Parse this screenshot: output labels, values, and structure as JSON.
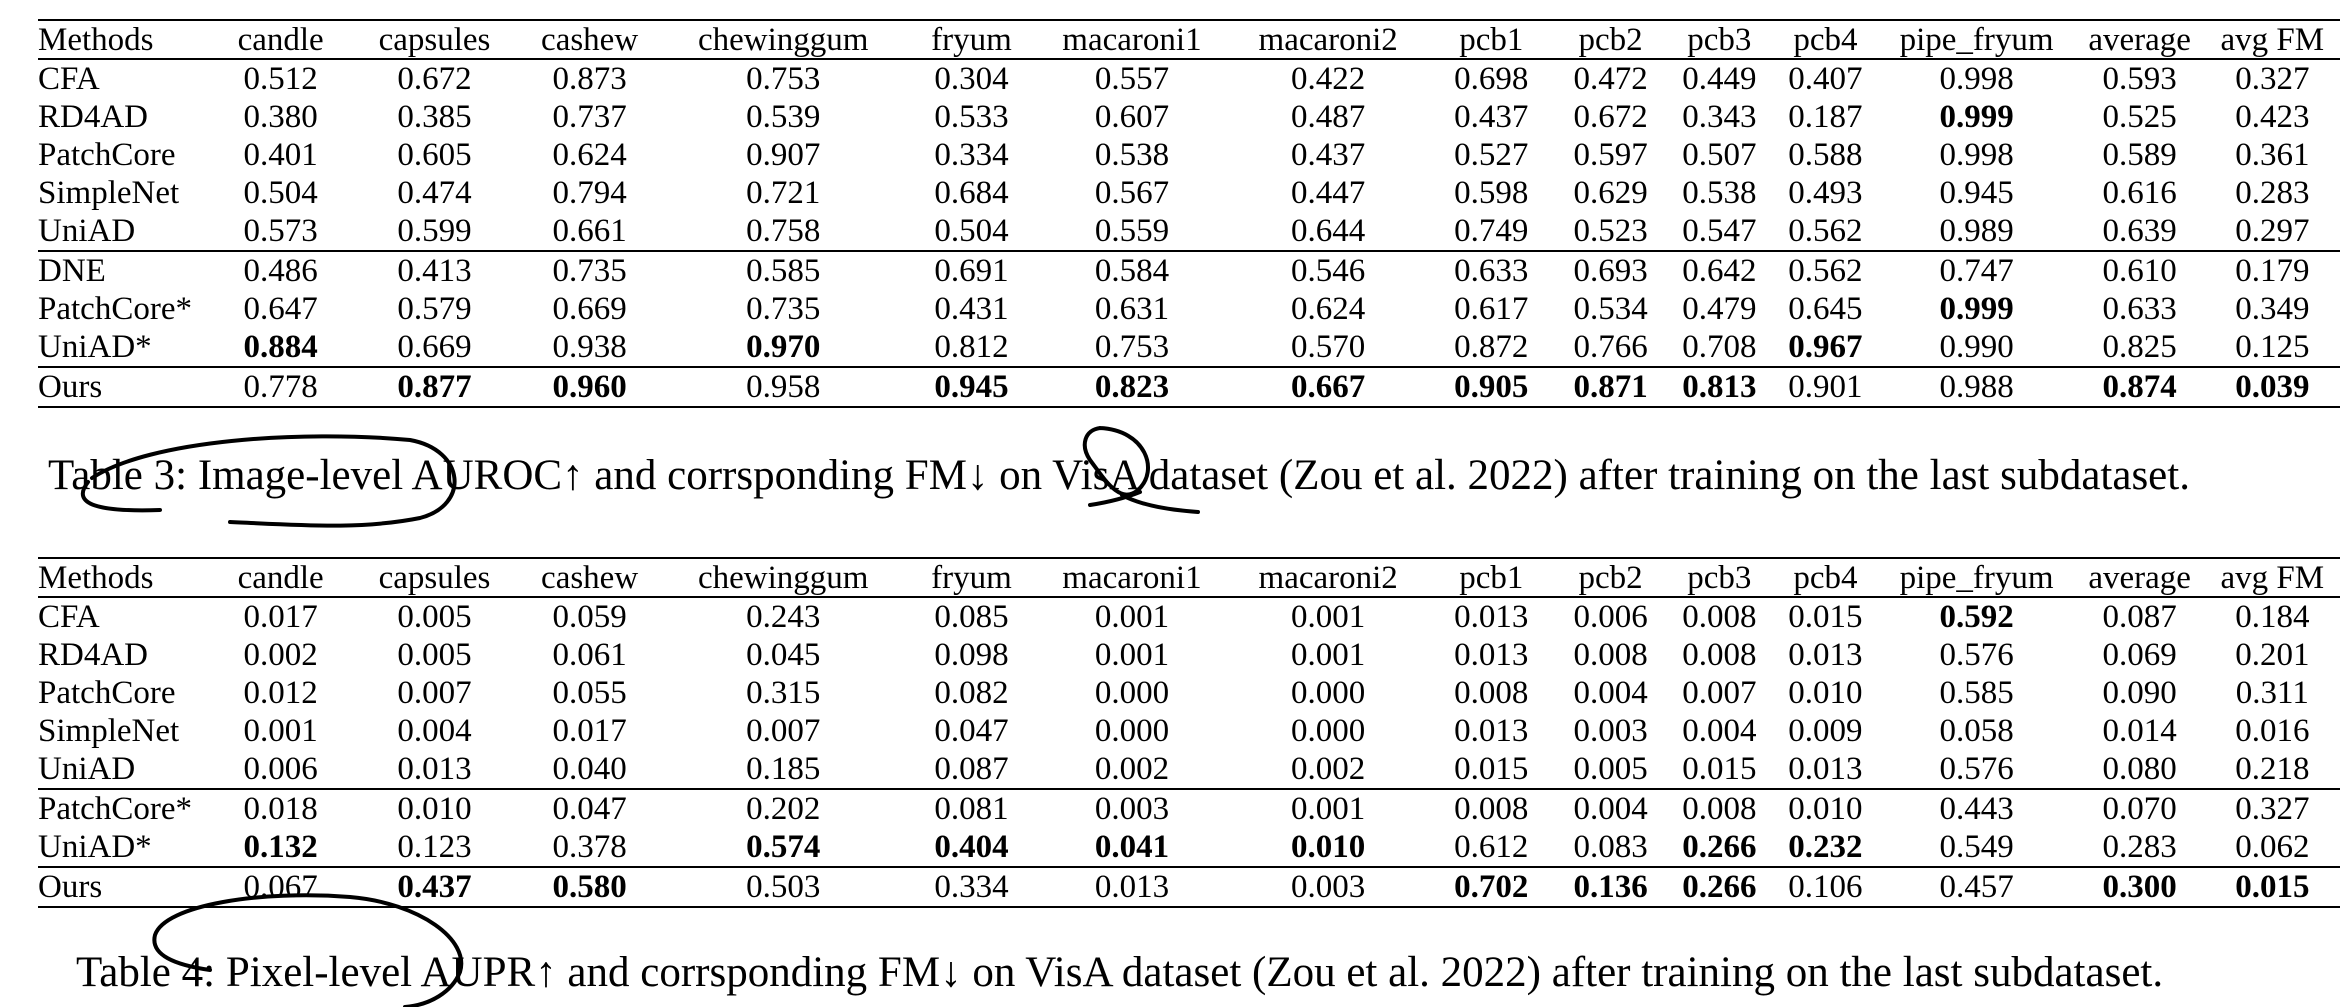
{
  "columns": [
    "Methods",
    "candle",
    "capsules",
    "cashew",
    "chewinggum",
    "fryum",
    "macaroni1",
    "macaroni2",
    "pcb1",
    "pcb2",
    "pcb3",
    "pcb4",
    "pipe_fryum",
    "average",
    "avg FM"
  ],
  "table3": {
    "caption": "Table 3: Image-level AUROC↑ and corrsponding FM↓ on VisA dataset (Zou et al. 2022) after training on the last subdataset.",
    "rows": [
      {
        "method": "CFA",
        "values": [
          "0.512",
          "0.672",
          "0.873",
          "0.753",
          "0.304",
          "0.557",
          "0.422",
          "0.698",
          "0.472",
          "0.449",
          "0.407",
          "0.998",
          "0.593",
          "0.327"
        ],
        "bold": []
      },
      {
        "method": "RD4AD",
        "values": [
          "0.380",
          "0.385",
          "0.737",
          "0.539",
          "0.533",
          "0.607",
          "0.487",
          "0.437",
          "0.672",
          "0.343",
          "0.187",
          "0.999",
          "0.525",
          "0.423"
        ],
        "bold": [
          11
        ]
      },
      {
        "method": "PatchCore",
        "values": [
          "0.401",
          "0.605",
          "0.624",
          "0.907",
          "0.334",
          "0.538",
          "0.437",
          "0.527",
          "0.597",
          "0.507",
          "0.588",
          "0.998",
          "0.589",
          "0.361"
        ],
        "bold": []
      },
      {
        "method": "SimpleNet",
        "values": [
          "0.504",
          "0.474",
          "0.794",
          "0.721",
          "0.684",
          "0.567",
          "0.447",
          "0.598",
          "0.629",
          "0.538",
          "0.493",
          "0.945",
          "0.616",
          "0.283"
        ],
        "bold": []
      },
      {
        "method": "UniAD",
        "values": [
          "0.573",
          "0.599",
          "0.661",
          "0.758",
          "0.504",
          "0.559",
          "0.644",
          "0.749",
          "0.523",
          "0.547",
          "0.562",
          "0.989",
          "0.639",
          "0.297"
        ],
        "bold": []
      },
      {
        "method": "DNE",
        "values": [
          "0.486",
          "0.413",
          "0.735",
          "0.585",
          "0.691",
          "0.584",
          "0.546",
          "0.633",
          "0.693",
          "0.642",
          "0.562",
          "0.747",
          "0.610",
          "0.179"
        ],
        "bold": [],
        "group_start": true
      },
      {
        "method": "PatchCore*",
        "values": [
          "0.647",
          "0.579",
          "0.669",
          "0.735",
          "0.431",
          "0.631",
          "0.624",
          "0.617",
          "0.534",
          "0.479",
          "0.645",
          "0.999",
          "0.633",
          "0.349"
        ],
        "bold": [
          11
        ]
      },
      {
        "method": "UniAD*",
        "values": [
          "0.884",
          "0.669",
          "0.938",
          "0.970",
          "0.812",
          "0.753",
          "0.570",
          "0.872",
          "0.766",
          "0.708",
          "0.967",
          "0.990",
          "0.825",
          "0.125"
        ],
        "bold": [
          0,
          3,
          10
        ]
      },
      {
        "method": "Ours",
        "values": [
          "0.778",
          "0.877",
          "0.960",
          "0.958",
          "0.945",
          "0.823",
          "0.667",
          "0.905",
          "0.871",
          "0.813",
          "0.901",
          "0.988",
          "0.874",
          "0.039"
        ],
        "bold": [
          1,
          2,
          4,
          5,
          6,
          7,
          8,
          9,
          12,
          13
        ],
        "final": true
      }
    ]
  },
  "table4": {
    "caption": "Table 4: Pixel-level AUPR↑ and corrsponding FM↓ on VisA dataset (Zou et al. 2022) after training on the last subdataset.",
    "rows": [
      {
        "method": "CFA",
        "values": [
          "0.017",
          "0.005",
          "0.059",
          "0.243",
          "0.085",
          "0.001",
          "0.001",
          "0.013",
          "0.006",
          "0.008",
          "0.015",
          "0.592",
          "0.087",
          "0.184"
        ],
        "bold": [
          11
        ]
      },
      {
        "method": "RD4AD",
        "values": [
          "0.002",
          "0.005",
          "0.061",
          "0.045",
          "0.098",
          "0.001",
          "0.001",
          "0.013",
          "0.008",
          "0.008",
          "0.013",
          "0.576",
          "0.069",
          "0.201"
        ],
        "bold": []
      },
      {
        "method": "PatchCore",
        "values": [
          "0.012",
          "0.007",
          "0.055",
          "0.315",
          "0.082",
          "0.000",
          "0.000",
          "0.008",
          "0.004",
          "0.007",
          "0.010",
          "0.585",
          "0.090",
          "0.311"
        ],
        "bold": []
      },
      {
        "method": "SimpleNet",
        "values": [
          "0.001",
          "0.004",
          "0.017",
          "0.007",
          "0.047",
          "0.000",
          "0.000",
          "0.013",
          "0.003",
          "0.004",
          "0.009",
          "0.058",
          "0.014",
          "0.016"
        ],
        "bold": []
      },
      {
        "method": "UniAD",
        "values": [
          "0.006",
          "0.013",
          "0.040",
          "0.185",
          "0.087",
          "0.002",
          "0.002",
          "0.015",
          "0.005",
          "0.015",
          "0.013",
          "0.576",
          "0.080",
          "0.218"
        ],
        "bold": []
      },
      {
        "method": "PatchCore*",
        "values": [
          "0.018",
          "0.010",
          "0.047",
          "0.202",
          "0.081",
          "0.003",
          "0.001",
          "0.008",
          "0.004",
          "0.008",
          "0.010",
          "0.443",
          "0.070",
          "0.327"
        ],
        "bold": [],
        "group_start": true
      },
      {
        "method": "UniAD*",
        "values": [
          "0.132",
          "0.123",
          "0.378",
          "0.574",
          "0.404",
          "0.041",
          "0.010",
          "0.612",
          "0.083",
          "0.266",
          "0.232",
          "0.549",
          "0.283",
          "0.062"
        ],
        "bold": [
          0,
          3,
          4,
          5,
          6,
          9,
          10
        ]
      },
      {
        "method": "Ours",
        "values": [
          "0.067",
          "0.437",
          "0.580",
          "0.503",
          "0.334",
          "0.013",
          "0.003",
          "0.702",
          "0.136",
          "0.266",
          "0.106",
          "0.457",
          "0.300",
          "0.015"
        ],
        "bold": [
          1,
          2,
          7,
          8,
          9,
          12,
          13
        ],
        "final": true
      }
    ]
  }
}
